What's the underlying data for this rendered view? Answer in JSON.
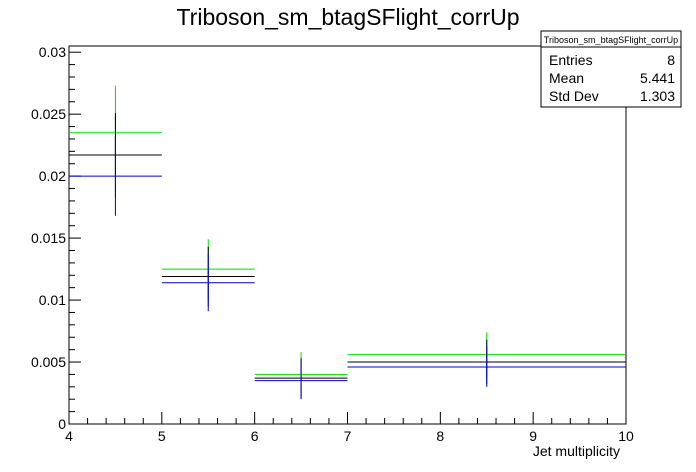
{
  "chart_data": {
    "type": "scatter",
    "title": "Triboson_sm_btagSFlight_corrUp",
    "xlabel": "Jet multiplicity",
    "ylabel": "",
    "xlim": [
      4,
      10
    ],
    "ylim": [
      0,
      0.0305
    ],
    "x_ticks": [
      "4",
      "5",
      "6",
      "7",
      "8",
      "9",
      "10"
    ],
    "y_ticks": [
      "0",
      "0.005",
      "0.01",
      "0.015",
      "0.02",
      "0.025",
      "0.03"
    ],
    "grid": false,
    "bins": [
      {
        "lo": 4,
        "hi": 5,
        "center": 4.5
      },
      {
        "lo": 5,
        "hi": 6,
        "center": 5.5
      },
      {
        "lo": 6,
        "hi": 7,
        "center": 6.5
      },
      {
        "lo": 7,
        "hi": 10,
        "center": 8.5
      }
    ],
    "series": [
      {
        "color": "#00dd00",
        "values": [
          0.0235,
          0.0125,
          0.004,
          0.0056
        ],
        "errors": [
          0.0038,
          0.0024,
          0.0018,
          0.0018
        ]
      },
      {
        "color": "#000000",
        "values": [
          0.0217,
          0.0119,
          0.0037,
          0.005
        ],
        "errors": [
          0.0034,
          0.0024,
          0.0016,
          0.0018
        ]
      },
      {
        "color": "#0000cc",
        "values": [
          0.02,
          0.0114,
          0.0035,
          0.0046
        ],
        "errors": [
          0.0032,
          0.0023,
          0.0015,
          0.0016
        ]
      }
    ],
    "stats": {
      "name": "Triboson_sm_btagSFlight_corrUp",
      "rows": [
        {
          "label": "Entries",
          "value": "8"
        },
        {
          "label": "Mean",
          "value": "5.441"
        },
        {
          "label": "Std Dev",
          "value": "1.303"
        }
      ]
    }
  }
}
